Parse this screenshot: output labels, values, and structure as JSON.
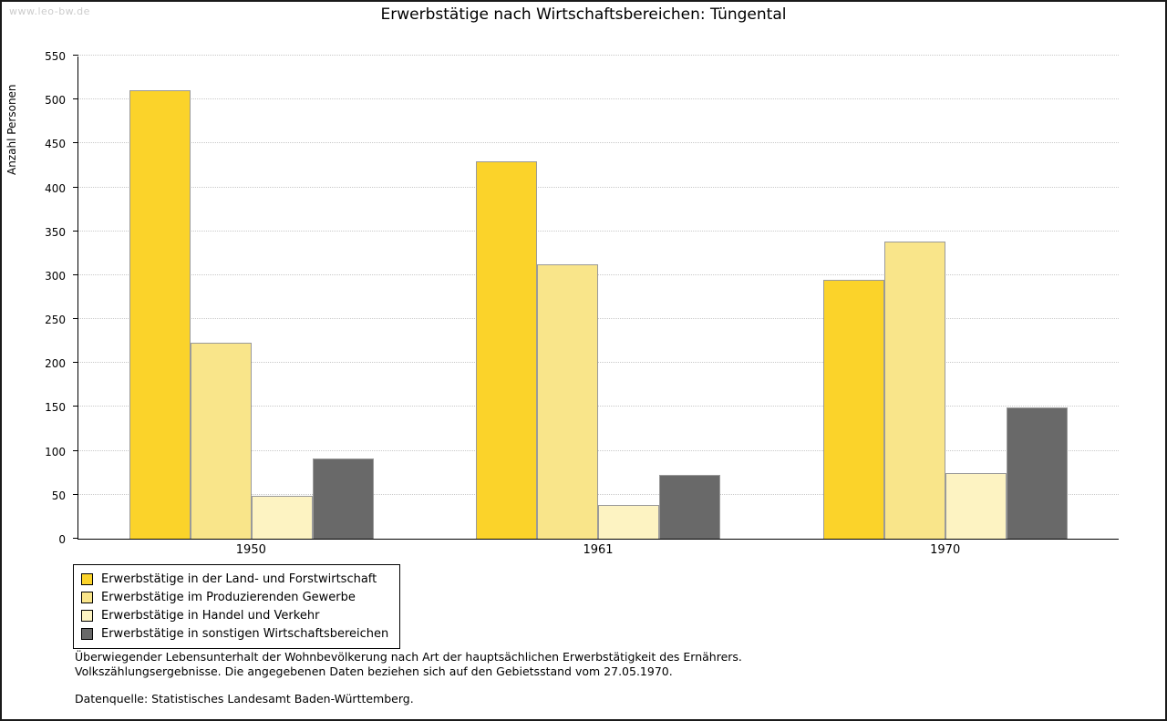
{
  "watermark": "www.leo-bw.de",
  "title": "Erwerbstätige nach Wirtschaftsbereichen: Tüngental",
  "chart_data": {
    "type": "bar",
    "title": "Erwerbstätige nach Wirtschaftsbereichen: Tüngental",
    "xlabel": "",
    "ylabel": "Anzahl Personen",
    "ylim": [
      0,
      550
    ],
    "yticks": [
      0,
      50,
      100,
      150,
      200,
      250,
      300,
      350,
      400,
      450,
      500,
      550
    ],
    "grid": "horizontal-dotted",
    "legend_position": "bottom-left",
    "categories": [
      "1950",
      "1961",
      "1970"
    ],
    "series": [
      {
        "name": "Erwerbstätige in der Land- und Forstwirtschaft",
        "color": "#FBD32A",
        "values": [
          512,
          430,
          295
        ]
      },
      {
        "name": "Erwerbstätige im Produzierenden Gewerbe",
        "color": "#F9E58A",
        "values": [
          224,
          313,
          339
        ]
      },
      {
        "name": "Erwerbstätige in Handel und Verkehr",
        "color": "#FDF3C2",
        "values": [
          49,
          38,
          75
        ]
      },
      {
        "name": "Erwerbstätige in sonstigen Wirtschaftsbereichen",
        "color": "#696969",
        "values": [
          92,
          73,
          150
        ]
      }
    ]
  },
  "footnotes": {
    "line1": "Überwiegender Lebensunterhalt der Wohnbevölkerung nach Art der hauptsächlichen Erwerbstätigkeit des Ernährers.",
    "line2": "Volkszählungsergebnisse. Die angegebenen Daten beziehen sich auf den Gebietsstand vom 27.05.1970.",
    "source": "Datenquelle: Statistisches Landesamt Baden-Württemberg."
  }
}
